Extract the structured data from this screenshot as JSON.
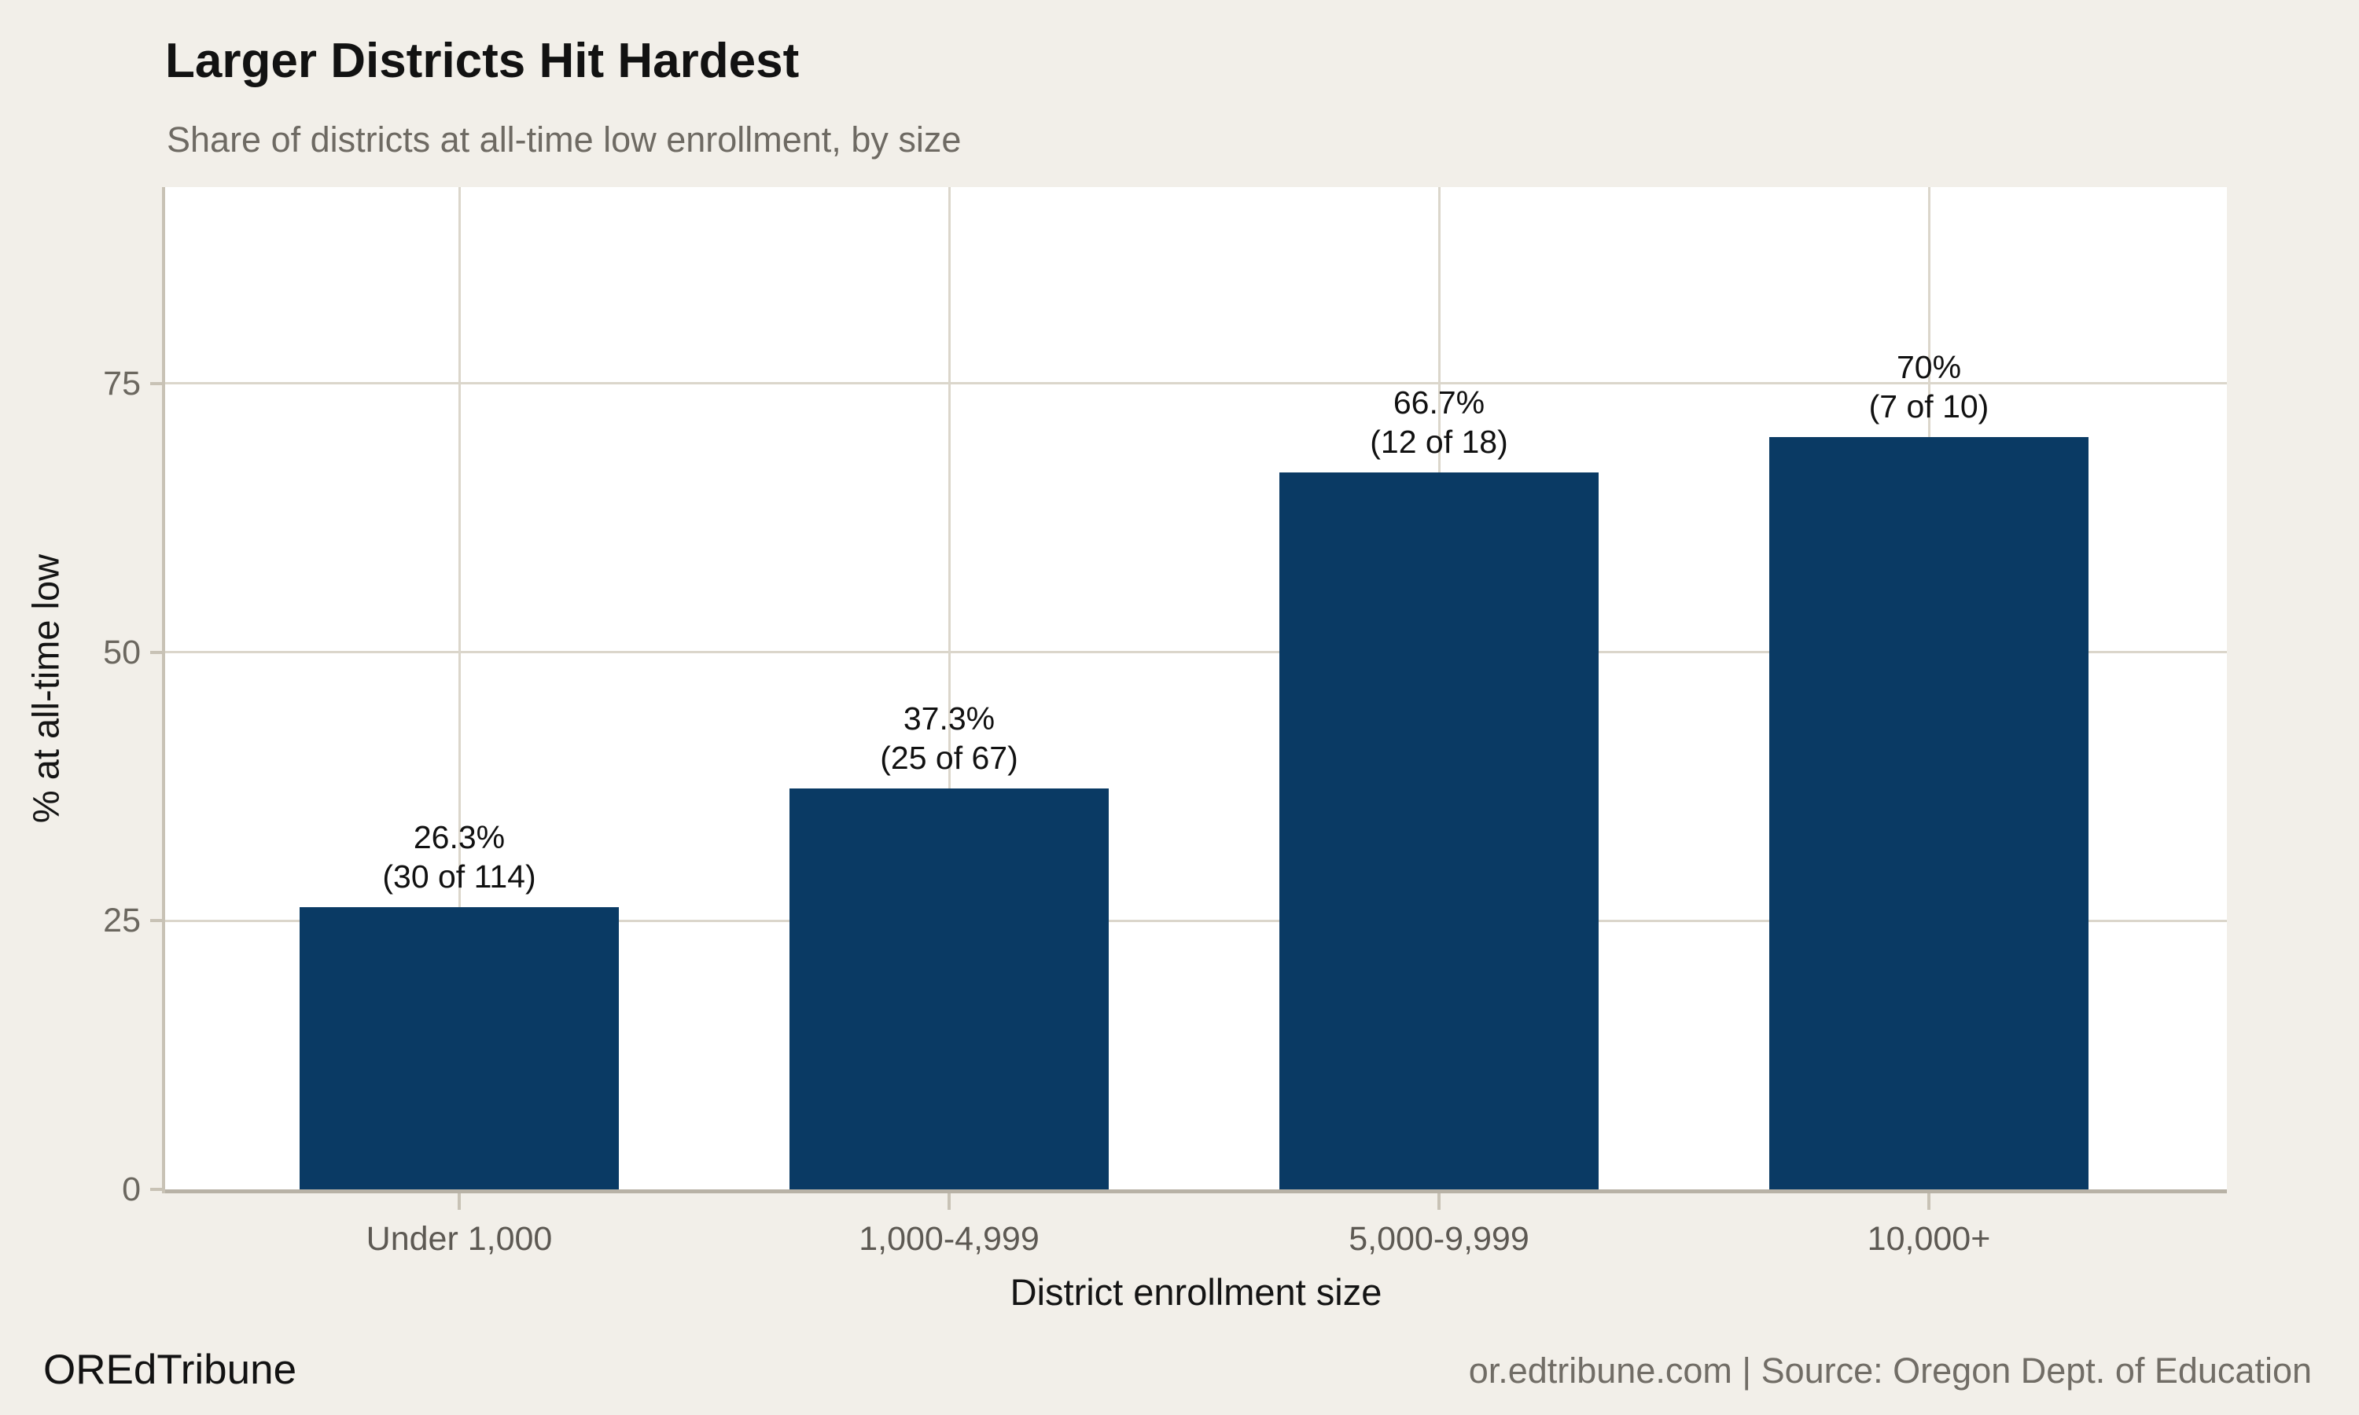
{
  "header": {
    "title": "Larger Districts Hit Hardest",
    "subtitle": "Share of districts at all-time low enrollment, by size"
  },
  "chart_data": {
    "type": "bar",
    "title": "Larger Districts Hit Hardest",
    "subtitle": "Share of districts at all-time low enrollment, by size",
    "categories": [
      "Under 1,000",
      "1,000-4,999",
      "5,000-9,999",
      "10,000+"
    ],
    "values": [
      26.3,
      37.3,
      66.7,
      70
    ],
    "bar_labels": [
      {
        "percent": "26.3%",
        "count": "(30 of 114)"
      },
      {
        "percent": "37.3%",
        "count": "(25 of 67)"
      },
      {
        "percent": "66.7%",
        "count": "(12 of 18)"
      },
      {
        "percent": "70%",
        "count": "(7 of 10)"
      }
    ],
    "xlabel": "District enrollment size",
    "ylabel": "% at all-time low",
    "yticks": [
      0,
      25,
      50,
      75
    ],
    "ylim": [
      0,
      93.3
    ],
    "grid": true,
    "legend_position": "none",
    "bar_color": "#0A3A64",
    "plot_background": "#FFFFFF",
    "page_background": "#F2EFE9",
    "gridline_color": "#DBD6CB",
    "axis_color": "#C8C2B5",
    "baseline_color": "#B8B2A6"
  },
  "footer": {
    "brand": "OREdTribune",
    "source": "or.edtribune.com | Source: Oregon Dept. of Education"
  }
}
